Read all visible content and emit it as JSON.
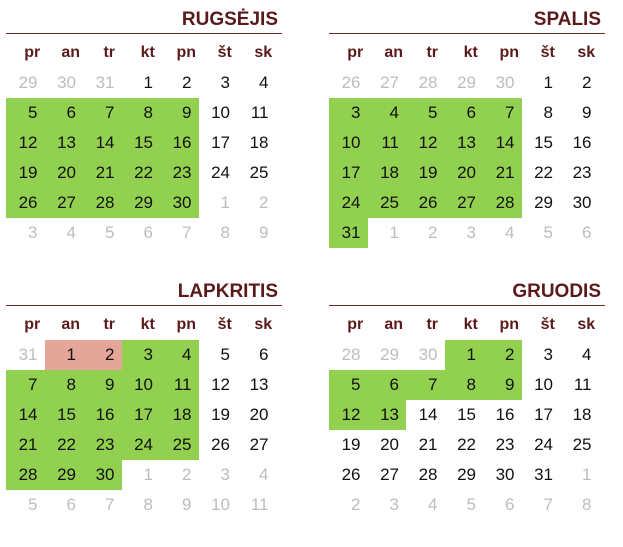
{
  "weekday_headers": [
    "pr",
    "an",
    "tr",
    "kt",
    "pn",
    "št",
    "sk"
  ],
  "colors": {
    "highlight_green": "#92d050",
    "highlight_red": "#e3a698",
    "header_text": "#5a1a1a",
    "muted_text": "#bdbdbd"
  },
  "months": [
    {
      "name": "RUGSĖJIS",
      "weeks": [
        [
          {
            "d": "29",
            "o": true
          },
          {
            "d": "30",
            "o": true
          },
          {
            "d": "31",
            "o": true
          },
          {
            "d": "1"
          },
          {
            "d": "2"
          },
          {
            "d": "3"
          },
          {
            "d": "4"
          }
        ],
        [
          {
            "d": "5",
            "h": "green"
          },
          {
            "d": "6",
            "h": "green"
          },
          {
            "d": "7",
            "h": "green"
          },
          {
            "d": "8",
            "h": "green"
          },
          {
            "d": "9",
            "h": "green"
          },
          {
            "d": "10"
          },
          {
            "d": "11"
          }
        ],
        [
          {
            "d": "12",
            "h": "green"
          },
          {
            "d": "13",
            "h": "green"
          },
          {
            "d": "14",
            "h": "green"
          },
          {
            "d": "15",
            "h": "green"
          },
          {
            "d": "16",
            "h": "green"
          },
          {
            "d": "17"
          },
          {
            "d": "18"
          }
        ],
        [
          {
            "d": "19",
            "h": "green"
          },
          {
            "d": "20",
            "h": "green"
          },
          {
            "d": "21",
            "h": "green"
          },
          {
            "d": "22",
            "h": "green"
          },
          {
            "d": "23",
            "h": "green"
          },
          {
            "d": "24"
          },
          {
            "d": "25"
          }
        ],
        [
          {
            "d": "26",
            "h": "green"
          },
          {
            "d": "27",
            "h": "green"
          },
          {
            "d": "28",
            "h": "green"
          },
          {
            "d": "29",
            "h": "green"
          },
          {
            "d": "30",
            "h": "green"
          },
          {
            "d": "1",
            "o": true
          },
          {
            "d": "2",
            "o": true
          }
        ],
        [
          {
            "d": "3",
            "o": true
          },
          {
            "d": "4",
            "o": true
          },
          {
            "d": "5",
            "o": true
          },
          {
            "d": "6",
            "o": true
          },
          {
            "d": "7",
            "o": true
          },
          {
            "d": "8",
            "o": true
          },
          {
            "d": "9",
            "o": true
          }
        ]
      ]
    },
    {
      "name": "SPALIS",
      "weeks": [
        [
          {
            "d": "26",
            "o": true
          },
          {
            "d": "27",
            "o": true
          },
          {
            "d": "28",
            "o": true
          },
          {
            "d": "29",
            "o": true
          },
          {
            "d": "30",
            "o": true
          },
          {
            "d": "1"
          },
          {
            "d": "2"
          }
        ],
        [
          {
            "d": "3",
            "h": "green"
          },
          {
            "d": "4",
            "h": "green"
          },
          {
            "d": "5",
            "h": "green"
          },
          {
            "d": "6",
            "h": "green"
          },
          {
            "d": "7",
            "h": "green"
          },
          {
            "d": "8"
          },
          {
            "d": "9"
          }
        ],
        [
          {
            "d": "10",
            "h": "green"
          },
          {
            "d": "11",
            "h": "green"
          },
          {
            "d": "12",
            "h": "green"
          },
          {
            "d": "13",
            "h": "green"
          },
          {
            "d": "14",
            "h": "green"
          },
          {
            "d": "15"
          },
          {
            "d": "16"
          }
        ],
        [
          {
            "d": "17",
            "h": "green"
          },
          {
            "d": "18",
            "h": "green"
          },
          {
            "d": "19",
            "h": "green"
          },
          {
            "d": "20",
            "h": "green"
          },
          {
            "d": "21",
            "h": "green"
          },
          {
            "d": "22"
          },
          {
            "d": "23"
          }
        ],
        [
          {
            "d": "24",
            "h": "green"
          },
          {
            "d": "25",
            "h": "green"
          },
          {
            "d": "26",
            "h": "green"
          },
          {
            "d": "27",
            "h": "green"
          },
          {
            "d": "28",
            "h": "green"
          },
          {
            "d": "29"
          },
          {
            "d": "30"
          }
        ],
        [
          {
            "d": "31",
            "h": "green"
          },
          {
            "d": "1",
            "o": true
          },
          {
            "d": "2",
            "o": true
          },
          {
            "d": "3",
            "o": true
          },
          {
            "d": "4",
            "o": true
          },
          {
            "d": "5",
            "o": true
          },
          {
            "d": "6",
            "o": true
          }
        ]
      ]
    },
    {
      "name": "LAPKRITIS",
      "weeks": [
        [
          {
            "d": "31",
            "o": true
          },
          {
            "d": "1",
            "h": "red"
          },
          {
            "d": "2",
            "h": "red"
          },
          {
            "d": "3",
            "h": "green"
          },
          {
            "d": "4",
            "h": "green"
          },
          {
            "d": "5"
          },
          {
            "d": "6"
          }
        ],
        [
          {
            "d": "7",
            "h": "green"
          },
          {
            "d": "8",
            "h": "green"
          },
          {
            "d": "9",
            "h": "green"
          },
          {
            "d": "10",
            "h": "green"
          },
          {
            "d": "11",
            "h": "green"
          },
          {
            "d": "12"
          },
          {
            "d": "13"
          }
        ],
        [
          {
            "d": "14",
            "h": "green"
          },
          {
            "d": "15",
            "h": "green"
          },
          {
            "d": "16",
            "h": "green"
          },
          {
            "d": "17",
            "h": "green"
          },
          {
            "d": "18",
            "h": "green"
          },
          {
            "d": "19"
          },
          {
            "d": "20"
          }
        ],
        [
          {
            "d": "21",
            "h": "green"
          },
          {
            "d": "22",
            "h": "green"
          },
          {
            "d": "23",
            "h": "green"
          },
          {
            "d": "24",
            "h": "green"
          },
          {
            "d": "25",
            "h": "green"
          },
          {
            "d": "26"
          },
          {
            "d": "27"
          }
        ],
        [
          {
            "d": "28",
            "h": "green"
          },
          {
            "d": "29",
            "h": "green"
          },
          {
            "d": "30",
            "h": "green"
          },
          {
            "d": "1",
            "o": true
          },
          {
            "d": "2",
            "o": true
          },
          {
            "d": "3",
            "o": true
          },
          {
            "d": "4",
            "o": true
          }
        ],
        [
          {
            "d": "5",
            "o": true
          },
          {
            "d": "6",
            "o": true
          },
          {
            "d": "7",
            "o": true
          },
          {
            "d": "8",
            "o": true
          },
          {
            "d": "9",
            "o": true
          },
          {
            "d": "10",
            "o": true
          },
          {
            "d": "11",
            "o": true
          }
        ]
      ]
    },
    {
      "name": "GRUODIS",
      "weeks": [
        [
          {
            "d": "28",
            "o": true
          },
          {
            "d": "29",
            "o": true
          },
          {
            "d": "30",
            "o": true
          },
          {
            "d": "1",
            "h": "green"
          },
          {
            "d": "2",
            "h": "green"
          },
          {
            "d": "3"
          },
          {
            "d": "4"
          }
        ],
        [
          {
            "d": "5",
            "h": "green"
          },
          {
            "d": "6",
            "h": "green"
          },
          {
            "d": "7",
            "h": "green"
          },
          {
            "d": "8",
            "h": "green"
          },
          {
            "d": "9",
            "h": "green"
          },
          {
            "d": "10"
          },
          {
            "d": "11"
          }
        ],
        [
          {
            "d": "12",
            "h": "green"
          },
          {
            "d": "13",
            "h": "green"
          },
          {
            "d": "14"
          },
          {
            "d": "15"
          },
          {
            "d": "16"
          },
          {
            "d": "17"
          },
          {
            "d": "18"
          }
        ],
        [
          {
            "d": "19"
          },
          {
            "d": "20"
          },
          {
            "d": "21"
          },
          {
            "d": "22"
          },
          {
            "d": "23"
          },
          {
            "d": "24"
          },
          {
            "d": "25"
          }
        ],
        [
          {
            "d": "26"
          },
          {
            "d": "27"
          },
          {
            "d": "28"
          },
          {
            "d": "29"
          },
          {
            "d": "30"
          },
          {
            "d": "31"
          },
          {
            "d": "1",
            "o": true
          }
        ],
        [
          {
            "d": "2",
            "o": true
          },
          {
            "d": "3",
            "o": true
          },
          {
            "d": "4",
            "o": true
          },
          {
            "d": "5",
            "o": true
          },
          {
            "d": "6",
            "o": true
          },
          {
            "d": "7",
            "o": true
          },
          {
            "d": "8",
            "o": true
          }
        ]
      ]
    }
  ]
}
